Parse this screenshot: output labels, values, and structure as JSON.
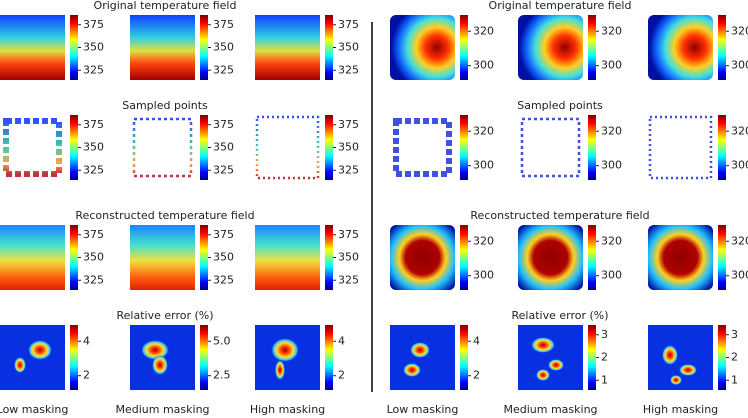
{
  "left": {
    "rows": [
      {
        "title": "Original temperature field",
        "colorbar_ticks": [
          [
            325,
            350,
            375
          ],
          [
            325,
            350,
            375
          ],
          [
            325,
            350,
            375
          ]
        ]
      },
      {
        "title": "Sampled points",
        "colorbar_ticks": [
          [
            325,
            350,
            375
          ],
          [
            325,
            350,
            375
          ],
          [
            325,
            350,
            375
          ]
        ]
      },
      {
        "title": "Reconstructed temperature field",
        "colorbar_ticks": [
          [
            325,
            350,
            375
          ],
          [
            325,
            350,
            375
          ],
          [
            325,
            350,
            375
          ]
        ]
      },
      {
        "title": "Relative error (%)",
        "colorbar_ticks": [
          [
            2,
            4
          ],
          [
            "2.5",
            "5.0"
          ],
          [
            2,
            4
          ]
        ]
      }
    ],
    "columns": [
      "Low masking",
      "Medium masking",
      "High masking"
    ]
  },
  "right": {
    "rows": [
      {
        "title": "Original temperature field",
        "colorbar_ticks": [
          [
            300,
            320
          ],
          [
            300,
            320
          ],
          [
            300,
            320
          ]
        ]
      },
      {
        "title": "Sampled points",
        "colorbar_ticks": [
          [
            300,
            320
          ],
          [
            300,
            320
          ],
          [
            300,
            320
          ]
        ]
      },
      {
        "title": "Reconstructed temperature field",
        "colorbar_ticks": [
          [
            300,
            320
          ],
          [
            300,
            320
          ],
          [
            300,
            320
          ]
        ]
      },
      {
        "title": "Relative error (%)",
        "colorbar_ticks": [
          [
            2,
            4
          ],
          [
            1,
            2,
            3
          ],
          [
            1,
            2,
            3
          ]
        ]
      }
    ],
    "columns": [
      "Low masking",
      "Medium masking",
      "High masking"
    ]
  }
}
